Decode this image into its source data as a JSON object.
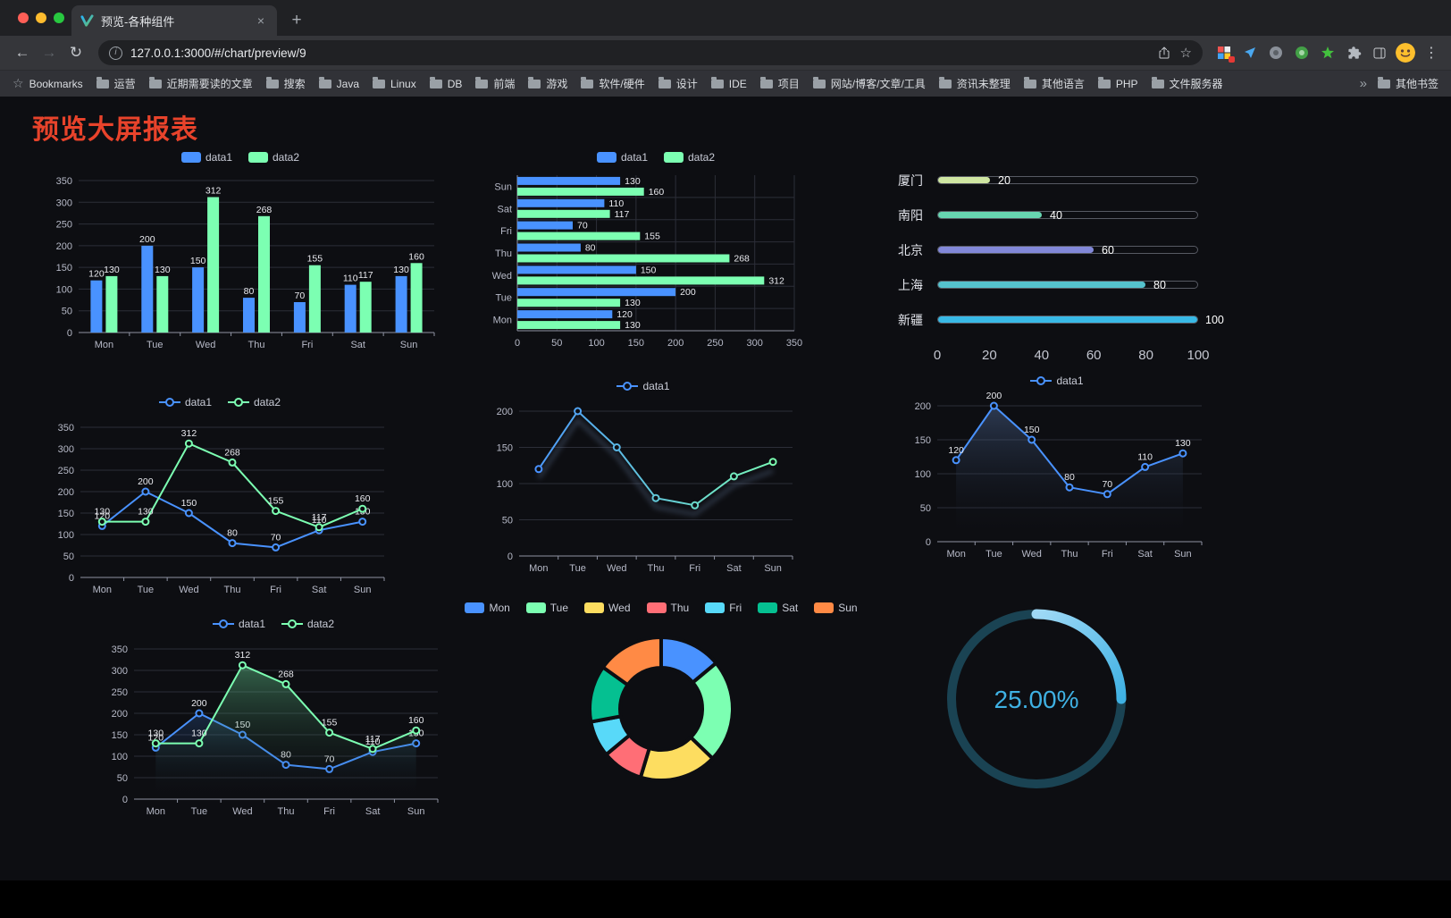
{
  "browser": {
    "tab": {
      "title": "预览-各种组件",
      "close_icon": "×",
      "new_tab_icon": "+"
    },
    "toolbar": {
      "back_icon": "←",
      "forward_icon": "→",
      "reload_icon": "↻",
      "url": "127.0.0.1:3000/#/chart/preview/9",
      "info_icon": "i",
      "star_icon": "☆",
      "menu_icon": "⋮"
    },
    "bookmarks_bar": {
      "items": [
        {
          "icon": "star",
          "label": "Bookmarks"
        },
        {
          "icon": "folder",
          "label": "运营"
        },
        {
          "icon": "folder",
          "label": "近期需要读的文章"
        },
        {
          "icon": "folder",
          "label": "搜索"
        },
        {
          "icon": "folder",
          "label": "Java"
        },
        {
          "icon": "folder",
          "label": "Linux"
        },
        {
          "icon": "folder",
          "label": "DB"
        },
        {
          "icon": "folder",
          "label": "前端"
        },
        {
          "icon": "folder",
          "label": "游戏"
        },
        {
          "icon": "folder",
          "label": "软件/硬件"
        },
        {
          "icon": "folder",
          "label": "设计"
        },
        {
          "icon": "folder",
          "label": "IDE"
        },
        {
          "icon": "folder",
          "label": "项目"
        },
        {
          "icon": "folder",
          "label": "网站/博客/文章/工具"
        },
        {
          "icon": "folder",
          "label": "资讯未整理"
        },
        {
          "icon": "folder",
          "label": "其他语言"
        },
        {
          "icon": "folder",
          "label": "PHP"
        },
        {
          "icon": "folder",
          "label": "文件服务器"
        }
      ],
      "overflow_icon": "»",
      "other": {
        "icon": "folder",
        "label": "其他书签"
      }
    }
  },
  "page": {
    "title": "预览大屏报表",
    "title_color": "#e8432b"
  },
  "chart_data": [
    {
      "type": "bar",
      "categories": [
        "Mon",
        "Tue",
        "Wed",
        "Thu",
        "Fri",
        "Sat",
        "Sun"
      ],
      "series": [
        {
          "name": "data1",
          "color": "#4992ff",
          "values": [
            120,
            200,
            150,
            80,
            70,
            110,
            130
          ]
        },
        {
          "name": "data2",
          "color": "#7cffb2",
          "values": [
            130,
            130,
            312,
            268,
            155,
            117,
            160
          ]
        }
      ],
      "ylim": [
        0,
        350
      ],
      "ytick": 50,
      "legend_position": "top",
      "grid": true
    },
    {
      "type": "hbar",
      "categories": [
        "Mon",
        "Tue",
        "Wed",
        "Thu",
        "Fri",
        "Sat",
        "Sun"
      ],
      "series": [
        {
          "name": "data1",
          "color": "#4992ff",
          "values": [
            120,
            200,
            150,
            80,
            70,
            110,
            130
          ]
        },
        {
          "name": "data2",
          "color": "#7cffb2",
          "values": [
            130,
            130,
            312,
            268,
            155,
            117,
            160
          ]
        }
      ],
      "xlim": [
        0,
        350
      ],
      "xtick": 50,
      "legend_position": "top",
      "grid": true
    },
    {
      "type": "progress",
      "max": 100,
      "axis_ticks": [
        0,
        20,
        40,
        60,
        80,
        100
      ],
      "items": [
        {
          "label": "厦门",
          "value": 20,
          "color": "#cfe6a2"
        },
        {
          "label": "南阳",
          "value": 40,
          "color": "#67d5b1"
        },
        {
          "label": "北京",
          "value": 60,
          "color": "#8288d9"
        },
        {
          "label": "上海",
          "value": 80,
          "color": "#55c2cd"
        },
        {
          "label": "新疆",
          "value": 100,
          "color": "#38b9e6"
        }
      ]
    },
    {
      "type": "line",
      "categories": [
        "Mon",
        "Tue",
        "Wed",
        "Thu",
        "Fri",
        "Sat",
        "Sun"
      ],
      "series": [
        {
          "name": "data1",
          "color": "#4992ff",
          "values": [
            120,
            200,
            150,
            80,
            70,
            110,
            130
          ]
        },
        {
          "name": "data2",
          "color": "#7cffb2",
          "values": [
            130,
            130,
            312,
            268,
            155,
            117,
            160
          ]
        }
      ],
      "ylim": [
        0,
        350
      ],
      "ytick": 50,
      "labels": true,
      "legend_position": "top"
    },
    {
      "type": "line",
      "categories": [
        "Mon",
        "Tue",
        "Wed",
        "Thu",
        "Fri",
        "Sat",
        "Sun"
      ],
      "series": [
        {
          "name": "data1",
          "color": "#4992ff",
          "values": [
            120,
            200,
            150,
            80,
            70,
            110,
            130
          ],
          "gradient": [
            "#4992ff",
            "#7cffb2"
          ],
          "shadow": true
        }
      ],
      "ylim": [
        0,
        200
      ],
      "ytick": 50,
      "labels": false,
      "legend_position": "top"
    },
    {
      "type": "line",
      "categories": [
        "Mon",
        "Tue",
        "Wed",
        "Thu",
        "Fri",
        "Sat",
        "Sun"
      ],
      "series": [
        {
          "name": "data1",
          "color": "#4992ff",
          "values": [
            120,
            200,
            150,
            80,
            70,
            110,
            130
          ],
          "area": "rgba(84,112,160,0.45)"
        }
      ],
      "ylim": [
        0,
        200
      ],
      "ytick": 50,
      "labels": true,
      "legend_position": "top"
    },
    {
      "type": "line",
      "categories": [
        "Mon",
        "Tue",
        "Wed",
        "Thu",
        "Fri",
        "Sat",
        "Sun"
      ],
      "series": [
        {
          "name": "data1",
          "color": "#4992ff",
          "values": [
            120,
            200,
            150,
            80,
            70,
            110,
            130
          ],
          "area": "rgba(73,146,255,0.20)"
        },
        {
          "name": "data2",
          "color": "#7cffb2",
          "values": [
            130,
            130,
            312,
            268,
            155,
            117,
            160
          ],
          "area": "rgba(124,255,178,0.35)"
        }
      ],
      "ylim": [
        0,
        350
      ],
      "ytick": 50,
      "labels": true,
      "legend_position": "top"
    },
    {
      "type": "pie",
      "inner": 46,
      "outer": 80,
      "legend_position": "top",
      "items": [
        {
          "label": "Mon",
          "value": 120,
          "color": "#4992ff"
        },
        {
          "label": "Tue",
          "value": 200,
          "color": "#7cffb2"
        },
        {
          "label": "Wed",
          "value": 150,
          "color": "#fddd60"
        },
        {
          "label": "Thu",
          "value": 80,
          "color": "#ff6e76"
        },
        {
          "label": "Fri",
          "value": 70,
          "color": "#58d9f9"
        },
        {
          "label": "Sat",
          "value": 110,
          "color": "#05c091"
        },
        {
          "label": "Sun",
          "value": 130,
          "color": "#ff8a45"
        }
      ]
    },
    {
      "type": "gauge",
      "value": 25,
      "display": "25.00%",
      "color": "#3fb1e3",
      "track_color": "#1a4353"
    }
  ]
}
